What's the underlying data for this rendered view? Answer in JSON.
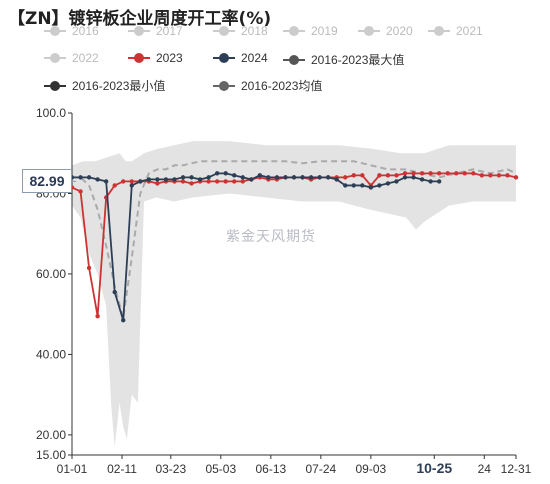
{
  "title": "【ZN】镀锌板企业周度开工率(%)",
  "watermark": "紫金天风期货",
  "current_value_label": "82.99",
  "colors": {
    "y2023": "#cc3333",
    "y2024": "#2e3f55",
    "max": "#555555",
    "min": "#333333",
    "avg": "#666666",
    "inactive": "#cccccc",
    "band": "#e3e3e3",
    "avg_line": "#aaaaaa"
  },
  "legend": [
    {
      "label": "2016",
      "active": false
    },
    {
      "label": "2017",
      "active": false
    },
    {
      "label": "2018",
      "active": false
    },
    {
      "label": "2019",
      "active": false
    },
    {
      "label": "2020",
      "active": false
    },
    {
      "label": "2021",
      "active": false
    },
    {
      "label": "2022",
      "active": false
    },
    {
      "label": "2023",
      "active": true,
      "color": "#cc3333"
    },
    {
      "label": "2024",
      "active": true,
      "color": "#2e3f55"
    },
    {
      "label": "2016-2023最大值",
      "active": true,
      "color": "#555555"
    },
    {
      "label": "2016-2023最小值",
      "active": true,
      "color": "#333333"
    },
    {
      "label": "2016-2023均值",
      "active": true,
      "color": "#666666"
    }
  ],
  "chart_data": {
    "type": "line",
    "x_tick_labels": [
      "01-01",
      "02-11",
      "03-23",
      "05-03",
      "06-13",
      "07-24",
      "09-03",
      "10-25",
      "24",
      "12-31"
    ],
    "x_tick_days": [
      1,
      42,
      82,
      123,
      164,
      205,
      246,
      298,
      339,
      365
    ],
    "highlight_tick": "10-25",
    "y_tick_labels": [
      "15.00",
      "20.00",
      "40.00",
      "60.00",
      "80.00",
      "100.0"
    ],
    "y_ticks": [
      15,
      20,
      40,
      60,
      80,
      100
    ],
    "ylim": [
      15,
      100
    ],
    "xlim": [
      1,
      365
    ],
    "series": [
      {
        "name": "2023",
        "x": [
          1,
          8,
          15,
          22,
          29,
          36,
          43,
          50,
          57,
          64,
          71,
          78,
          85,
          92,
          99,
          106,
          113,
          120,
          127,
          134,
          141,
          148,
          155,
          162,
          169,
          176,
          183,
          190,
          197,
          204,
          211,
          218,
          225,
          232,
          239,
          246,
          253,
          260,
          267,
          274,
          281,
          288,
          295,
          302,
          309,
          316,
          323,
          330,
          337,
          344,
          351,
          358,
          365
        ],
        "y": [
          81.5,
          80.5,
          61.5,
          49.5,
          79,
          82,
          83,
          83,
          83,
          83,
          82.5,
          83,
          83,
          83,
          82.5,
          83,
          83,
          83,
          83,
          83,
          83,
          83.5,
          84,
          83.5,
          83.5,
          84,
          84,
          84,
          83.5,
          84,
          84,
          84,
          84,
          84.5,
          84.5,
          82,
          84.5,
          84.5,
          84.5,
          85,
          85,
          85,
          85,
          85,
          85,
          85,
          85,
          85,
          84.5,
          84.5,
          84.5,
          84.5,
          84
        ]
      },
      {
        "name": "2024",
        "x": [
          1,
          8,
          15,
          22,
          29,
          36,
          43,
          50,
          57,
          64,
          71,
          78,
          85,
          92,
          99,
          106,
          113,
          120,
          127,
          134,
          141,
          148,
          155,
          162,
          169,
          176,
          183,
          190,
          197,
          204,
          211,
          218,
          225,
          232,
          239,
          246,
          253,
          260,
          267,
          274,
          281,
          288,
          295,
          302
        ],
        "y": [
          84,
          84,
          84,
          83.5,
          83,
          55.5,
          48.5,
          82,
          83,
          83.5,
          83.5,
          83.5,
          83.5,
          84,
          84,
          83.5,
          84,
          85,
          85,
          84.5,
          84,
          83.5,
          84.5,
          84,
          84,
          84,
          84,
          84,
          84,
          84,
          84,
          83.5,
          82,
          82,
          82,
          81.5,
          82,
          82.5,
          83,
          84,
          84,
          83.5,
          83,
          83
        ]
      },
      {
        "name": "2016-2023最大值",
        "x": [
          1,
          10,
          20,
          30,
          40,
          45,
          50,
          60,
          70,
          85,
          100,
          130,
          160,
          190,
          220,
          250,
          270,
          290,
          310,
          330,
          350,
          365
        ],
        "y": [
          87,
          88,
          88,
          89,
          90,
          88,
          88,
          90,
          91,
          92,
          93,
          93,
          92,
          92,
          92,
          91,
          90,
          90,
          92,
          92,
          92,
          92
        ]
      },
      {
        "name": "2016-2023最小值",
        "x": [
          1,
          8,
          15,
          22,
          29,
          33,
          36,
          40,
          43,
          46,
          50,
          55,
          60,
          70,
          85,
          100,
          130,
          160,
          190,
          220,
          245,
          260,
          275,
          283,
          290,
          300,
          310,
          330,
          350,
          365
        ],
        "y": [
          77,
          74,
          65,
          60,
          52,
          28,
          17,
          28,
          22,
          19,
          30,
          28,
          78,
          79,
          78,
          79,
          80,
          79,
          78,
          78,
          76,
          75,
          74,
          71,
          73,
          75,
          77,
          78,
          78,
          78
        ]
      },
      {
        "name": "2016-2023均值",
        "x": [
          1,
          8,
          15,
          22,
          29,
          36,
          43,
          50,
          57,
          64,
          71,
          78,
          85,
          92,
          106,
          120,
          134,
          148,
          162,
          176,
          190,
          204,
          218,
          232,
          246,
          260,
          274,
          288,
          302,
          316,
          330,
          344,
          358,
          365
        ],
        "y": [
          84,
          84,
          82,
          76,
          67,
          57,
          49,
          64,
          80,
          85,
          86,
          86,
          87,
          87,
          88,
          88,
          88,
          88,
          88,
          88,
          87.5,
          88,
          88,
          88,
          87,
          86,
          86,
          85,
          84,
          85,
          86,
          85,
          86,
          85
        ]
      }
    ],
    "current_value": 82.99
  }
}
